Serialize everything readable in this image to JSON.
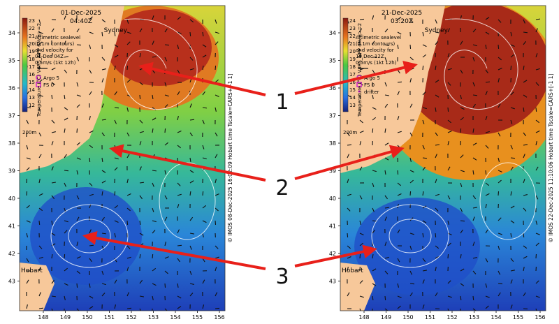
{
  "panels": [
    {
      "date": "01-Dec-2025",
      "time": "04:40Z",
      "city_top": "Sydney",
      "city_bottom": "Hobart",
      "legend_lines": [
        "Altimetric sealevel",
        "(0.1m contours)",
        "and velocity for",
        "01-Dec 04Z"
      ],
      "scale_label": "0.5m/s (1kt 12h)",
      "markers": [
        "Argo 5",
        "FS 0"
      ],
      "depth_label": "200m",
      "colorbar_label": "Temperature (°C) VIIRS_NPP 6% q>=2",
      "colorbar_ticks": [
        23,
        22,
        21,
        20,
        19,
        18,
        17,
        16,
        15,
        14,
        13,
        12
      ],
      "lat_ticks": [
        34,
        35,
        36,
        37,
        38,
        39,
        40,
        41,
        42,
        43
      ],
      "lon_ticks": [
        148,
        149,
        150,
        151,
        152,
        153,
        154,
        155,
        156
      ],
      "credit": "© IMOS 08-Dec-2025 16:02:09 Hobart time Tscale=CARS+[-1 1]"
    },
    {
      "date": "21-Dec-2025",
      "time": "03:20Z",
      "city_top": "Sydney",
      "city_bottom": "Hobart",
      "legend_lines": [
        "Altimetric sealevel",
        "(0.1m contours)",
        "and velocity for",
        "19 Dec 12Z"
      ],
      "scale_label": "0.5m/s (1kt 12h)",
      "markers": [
        "Argo 5",
        "FS 0",
        "drifter"
      ],
      "depth_label": "200m",
      "colorbar_label": "Temperature (°C) VIIRS_NPP 4% q>=2",
      "colorbar_ticks": [
        24,
        23,
        22,
        21,
        20,
        19,
        18,
        17,
        16,
        15,
        14,
        13
      ],
      "lat_ticks": [
        34,
        35,
        36,
        37,
        38,
        39,
        40,
        41,
        42,
        43
      ],
      "lon_ticks": [
        148,
        149,
        150,
        151,
        152,
        153,
        154,
        155,
        156
      ],
      "credit": "© IMOS 22-Dec-2025 11:10:06 Hobart time Tscale=CARS+[-1 1]"
    }
  ],
  "annotations": [
    "1",
    "2",
    "3"
  ]
}
